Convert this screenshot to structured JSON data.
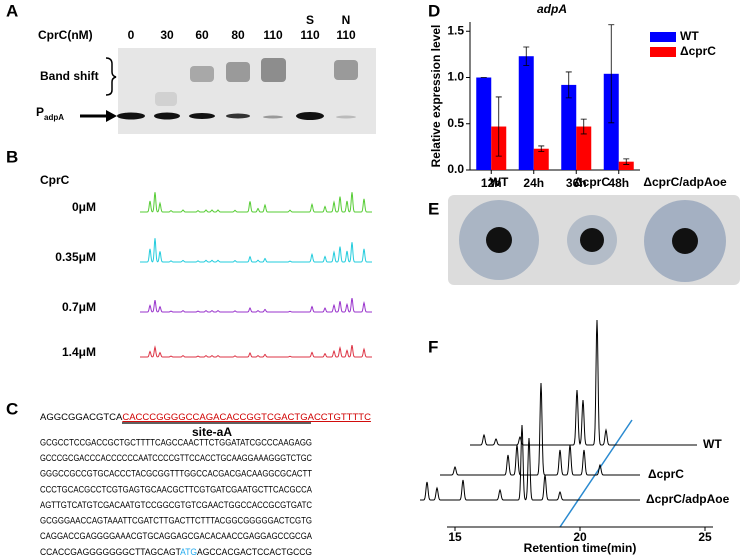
{
  "panel_labels": [
    "A",
    "B",
    "C",
    "D",
    "E",
    "F"
  ],
  "gel": {
    "concentration_header": "CprC(nM)",
    "concentrations": [
      0,
      30,
      60,
      80,
      110,
      110,
      110
    ],
    "lane_labels": [
      "S",
      "N"
    ],
    "band_shift": "Band shift",
    "probe": "P",
    "probe_subscript": "adpA"
  },
  "footprint": {
    "header": "CprC",
    "concentrations": [
      "0μM",
      "0.35μM",
      "0.7μM",
      "1.4μM"
    ]
  },
  "sequence": {
    "prefix": "AGGCGGACGTCA",
    "site": "CACCCGGGGCCAGACACCGGTCGACTGACCTGTTTTC",
    "site_label": "site-aA",
    "lines": [
      "GCGCCTCCGACCGCTGCTTTTCAGCCAACTTCTGGATATCGCCCAAGAGG",
      "GCCCGCGACCCACCCCCCAATCCCCGTTCCACCTGCAAGGAAAGGGTCTGC",
      "GGGCCGCCGTGCACCCTACGCGGTTTGGCCACGACGACAAGGCGCACTT",
      "CCCTGCACGCCTCGTGAGTGCAACGCTTCGTGATCGAATGCTTCACGCCA",
      "AGTTGTCATGTCGACAATGTCCGGCGTGTCGAACTGGCCACCGCGTGATC",
      "GCGGGAACCAGTAAATTCGATCTTGACTTCTTTACGGCGGGGGACTCGTG",
      "CAGGACCGAGGGGAAACGTGCAGGAGCGACACAACCGAGGAGCCGCGA"
    ],
    "last_line_start": "CCACCGAGGGGGGGCTTAGCAGT",
    "start_codon": "ATG",
    "last_line_end": "AGCCACGACTCCACTGCCG"
  },
  "plate": {
    "labels": [
      "WT",
      "ΔcprC",
      "ΔcprC/adpAoe"
    ]
  },
  "chart_data": [
    {
      "type": "bar",
      "title": "adpA",
      "ylabel": "Relative expression level",
      "categories": [
        "12h",
        "24h",
        "36h",
        "48h"
      ],
      "series": [
        {
          "name": "WT",
          "color": "#0000ff",
          "values": [
            1.0,
            1.23,
            0.92,
            1.04
          ],
          "errors": [
            0,
            0.1,
            0.14,
            0.53
          ]
        },
        {
          "name": "ΔcprC",
          "color": "#ff0000",
          "values": [
            0.47,
            0.23,
            0.47,
            0.09
          ],
          "errors": [
            0.32,
            0.03,
            0.08,
            0.03
          ]
        }
      ],
      "ylim": [
        0,
        1.6
      ],
      "yticks": [
        {
          "value": 0,
          "label": "0.0"
        },
        0.5,
        {
          "value": 1,
          "label": "1.0"
        },
        1.5
      ],
      "legend": "upper right"
    },
    {
      "type": "line",
      "xlabel": "Retention time(min)",
      "xlim": [
        15,
        25
      ],
      "xticks": [
        15,
        20,
        25
      ],
      "series": [
        {
          "name": "WT",
          "color": "#000000"
        },
        {
          "name": "ΔcprC",
          "color": "#000000"
        },
        {
          "name": "ΔcprC/adpAoe",
          "color": "#000000"
        }
      ]
    }
  ]
}
